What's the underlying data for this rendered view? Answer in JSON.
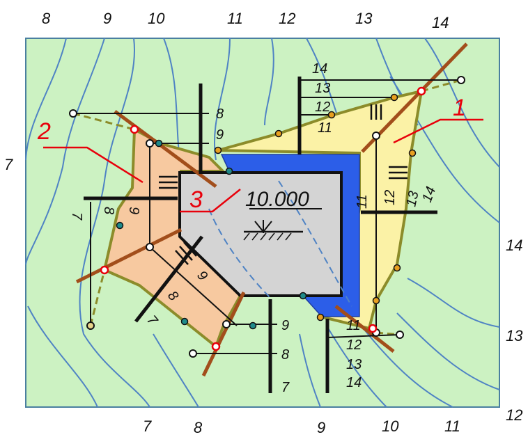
{
  "contour_labels": {
    "top": [
      "8",
      "9",
      "10",
      "11",
      "12",
      "13",
      "14"
    ],
    "bottom": [
      "7",
      "8",
      "9",
      "10",
      "11",
      "12"
    ],
    "left": "7",
    "right": [
      "14",
      "13"
    ]
  },
  "markers": {
    "m1": "1",
    "m2": "2",
    "m3": "3"
  },
  "platform": {
    "elevation": "10.000"
  },
  "scale_labels": {
    "s_top_mid": [
      "8",
      "9"
    ],
    "s_left_vert": [
      "7",
      "8",
      "9"
    ],
    "s_diag": [
      "7",
      "8",
      "9"
    ],
    "s_bottom_mid": [
      "9",
      "8",
      "7"
    ],
    "s_right_top": [
      "14",
      "13",
      "12",
      "11"
    ],
    "s_right_vert": [
      "11",
      "12",
      "13",
      "14"
    ],
    "s_right_bottom": [
      "11",
      "12",
      "13",
      "14"
    ]
  },
  "colors": {
    "terrain": "#ccf2c2",
    "contour": "#4f83c4",
    "platform": "#d4d4d4",
    "slope_fill": "#2c5ee8",
    "cut_zone": "#f7c9a0",
    "fill_zone": "#fbf2a6",
    "zero_line": "#8c8c2a",
    "boundary": "#a24e1b",
    "marker": "#e8000b"
  }
}
